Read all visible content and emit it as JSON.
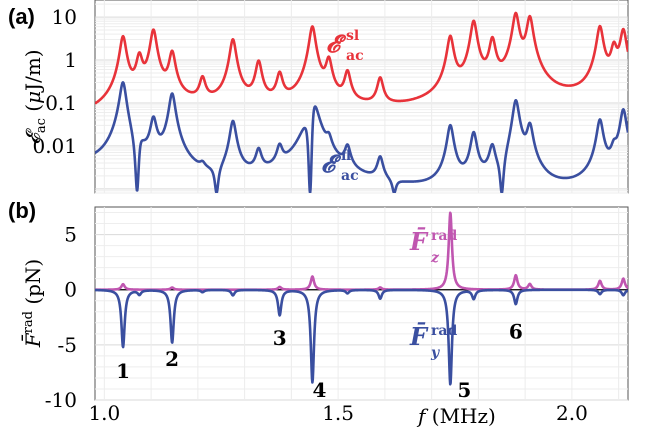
{
  "figure": {
    "panel_a_label": "(a)",
    "panel_b_label": "(b)"
  },
  "chart_data": [
    {
      "type": "line",
      "panel": "(a)",
      "ylabel": "𝓔ac (μJ/m)",
      "yscale": "log",
      "ylim": [
        0.0008,
        25
      ],
      "xlim": [
        0.98,
        2.12
      ],
      "ytick_labels": [
        "10",
        "1",
        "0.1",
        "0.01"
      ],
      "ytick_values": [
        10,
        1,
        0.1,
        0.01
      ],
      "grid": true,
      "series": [
        {
          "name": "𝓔ac sl",
          "color": "#e8333a",
          "baseline": [
            [
              0.98,
              0.04
            ],
            [
              1.15,
              0.075
            ],
            [
              1.3,
              0.07
            ],
            [
              1.5,
              0.06
            ],
            [
              1.65,
              0.055
            ],
            [
              1.8,
              0.06
            ],
            [
              2.12,
              0.11
            ]
          ],
          "peaks": [
            [
              1.04,
              3.5
            ],
            [
              1.075,
              1.2
            ],
            [
              1.105,
              5.0
            ],
            [
              1.145,
              1.5
            ],
            [
              1.21,
              0.35
            ],
            [
              1.275,
              3.0
            ],
            [
              1.33,
              0.9
            ],
            [
              1.375,
              0.45
            ],
            [
              1.445,
              6.0
            ],
            [
              1.48,
              1.0
            ],
            [
              1.52,
              0.5
            ],
            [
              1.59,
              0.35
            ],
            [
              1.74,
              3.5
            ],
            [
              1.79,
              8.0
            ],
            [
              1.83,
              3.0
            ],
            [
              1.88,
              12.0
            ],
            [
              1.91,
              10.0
            ],
            [
              2.06,
              6.0
            ],
            [
              2.09,
              2.0
            ],
            [
              2.11,
              5.0
            ]
          ]
        },
        {
          "name": "𝓔ac fl",
          "color": "#3a4fa0",
          "baseline": [
            [
              0.98,
              0.003
            ],
            [
              1.2,
              0.001
            ],
            [
              1.4,
              0.0012
            ],
            [
              1.58,
              0.0008
            ],
            [
              1.75,
              0.0006
            ],
            [
              1.95,
              0.0005
            ],
            [
              2.12,
              0.0015
            ]
          ],
          "peaks": [
            [
              1.04,
              0.35
            ],
            [
              1.075,
              0.02
            ],
            [
              1.105,
              0.045
            ],
            [
              1.145,
              0.17
            ],
            [
              1.21,
              0.002
            ],
            [
              1.275,
              0.04
            ],
            [
              1.33,
              0.007
            ],
            [
              1.375,
              0.008
            ],
            [
              1.445,
              0.4
            ],
            [
              1.48,
              0.01
            ],
            [
              1.52,
              0.008
            ],
            [
              1.59,
              0.005
            ],
            [
              1.74,
              0.03
            ],
            [
              1.79,
              0.02
            ],
            [
              1.83,
              0.01
            ],
            [
              1.88,
              0.13
            ],
            [
              1.91,
              0.03
            ],
            [
              2.06,
              0.04
            ],
            [
              2.09,
              0.007
            ],
            [
              2.11,
              0.07
            ]
          ],
          "dips": [
            [
              1.07,
              0.0009
            ],
            [
              1.24,
              0.0002
            ],
            [
              1.44,
              0.00015
            ],
            [
              1.62,
              0.00015
            ],
            [
              1.85,
              0.0007
            ]
          ]
        }
      ],
      "labels": {
        "sl": {
          "base": "𝓔",
          "sup": "sl",
          "sub": "ac"
        },
        "fl": {
          "base": "𝓔",
          "sup": "fl",
          "sub": "ac"
        }
      }
    },
    {
      "type": "line",
      "panel": "(b)",
      "ylabel": "F̄rad (pN)",
      "xlabel": "f (MHz)",
      "ylim": [
        -10,
        7.5
      ],
      "xlim": [
        0.98,
        2.12
      ],
      "ytick_labels": [
        "5",
        "0",
        "-5",
        "-10"
      ],
      "ytick_values": [
        5,
        0,
        -5,
        -10
      ],
      "xtick_labels": [
        "1.0",
        "1.5",
        "2.0"
      ],
      "xtick_values": [
        1.0,
        1.5,
        2.0
      ],
      "grid": true,
      "series": [
        {
          "name": "F̄z rad",
          "color": "#c056b0",
          "peaks": [
            [
              1.04,
              0.5
            ],
            [
              1.145,
              0.2
            ],
            [
              1.375,
              0.25
            ],
            [
              1.445,
              1.2
            ],
            [
              1.59,
              0.2
            ],
            [
              1.74,
              7.0
            ],
            [
              1.88,
              1.3
            ],
            [
              1.91,
              0.5
            ],
            [
              2.06,
              0.8
            ],
            [
              2.11,
              1.0
            ]
          ]
        },
        {
          "name": "F̄y rad",
          "color": "#3a4fa0",
          "peaks": [
            [
              1.04,
              -5.2
            ],
            [
              1.075,
              -0.4
            ],
            [
              1.145,
              -4.8
            ],
            [
              1.21,
              -0.2
            ],
            [
              1.275,
              -0.5
            ],
            [
              1.375,
              -2.3
            ],
            [
              1.445,
              -8.4
            ],
            [
              1.52,
              -0.3
            ],
            [
              1.59,
              -0.8
            ],
            [
              1.74,
              -8.6
            ],
            [
              1.79,
              -0.8
            ],
            [
              1.88,
              -1.3
            ],
            [
              2.06,
              -0.4
            ],
            [
              2.11,
              -0.5
            ]
          ]
        }
      ],
      "zero_line": {
        "color": "#000000",
        "value": 0
      },
      "labels": {
        "z": {
          "base": "F̄",
          "sup": "rad",
          "sub": "z"
        },
        "y": {
          "base": "F̄",
          "sup": "rad",
          "sub": "y"
        }
      },
      "annotations": [
        {
          "text": "1",
          "x": 1.04,
          "y": -7.3
        },
        {
          "text": "2",
          "x": 1.145,
          "y": -6.2
        },
        {
          "text": "3",
          "x": 1.375,
          "y": -4.3
        },
        {
          "text": "4",
          "x": 1.46,
          "y": -9.0
        },
        {
          "text": "5",
          "x": 1.77,
          "y": -9.0
        },
        {
          "text": "6",
          "x": 1.88,
          "y": -3.7
        }
      ]
    }
  ]
}
